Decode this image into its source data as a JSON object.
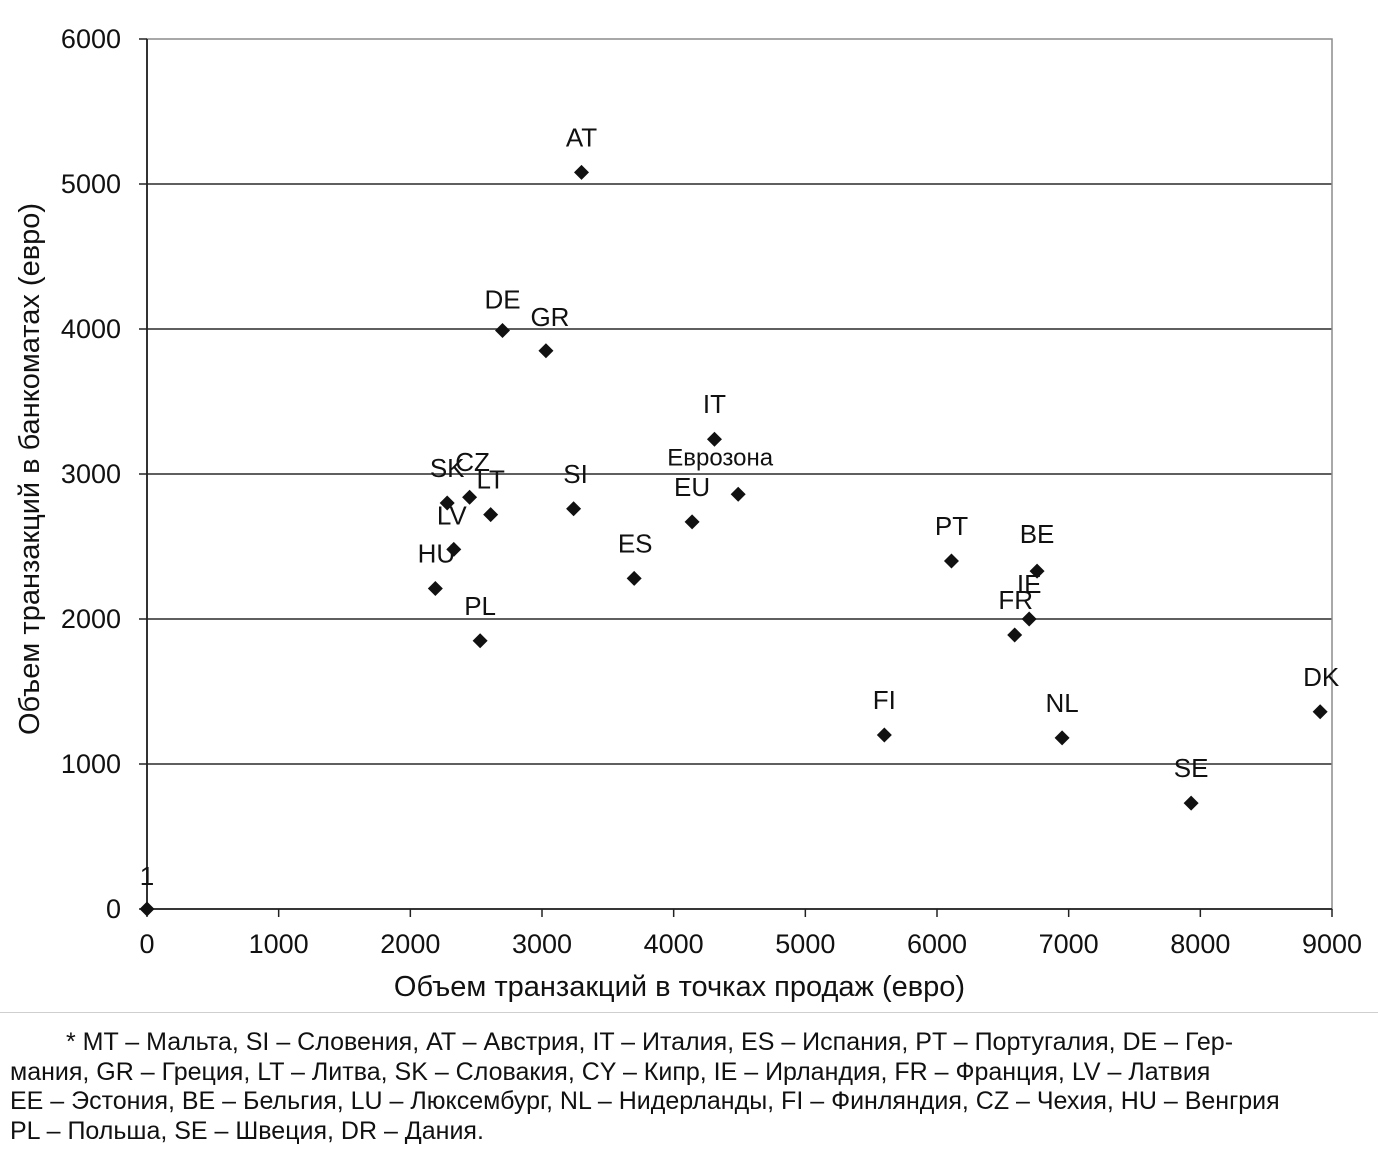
{
  "chart_data": {
    "type": "scatter",
    "title": "",
    "xlabel": "Объем транзакций в точках продаж (евро)",
    "ylabel": "Объем транзакций в банкоматах (евро)",
    "xlim": [
      0,
      9000
    ],
    "ylim": [
      0,
      6000
    ],
    "x_ticks": [
      "0",
      "1000",
      "2000",
      "3000",
      "4000",
      "5000",
      "6000",
      "7000",
      "8000",
      "9000"
    ],
    "y_ticks": [
      "0",
      "1000",
      "2000",
      "3000",
      "4000",
      "5000",
      "6000"
    ],
    "grid": "horizontal",
    "marker": "diamond",
    "points": [
      {
        "label": "1",
        "x": 0,
        "y": 0
      },
      {
        "label": "AT",
        "x": 3300,
        "y": 5080
      },
      {
        "label": "DE",
        "x": 2700,
        "y": 3990
      },
      {
        "label": "GR",
        "x": 3030,
        "y": 3850
      },
      {
        "label": "IT",
        "x": 4310,
        "y": 3240
      },
      {
        "label": "Еврозона",
        "x": 4490,
        "y": 2860
      },
      {
        "label": "SK",
        "x": 2280,
        "y": 2800
      },
      {
        "label": "CZ",
        "x": 2450,
        "y": 2840
      },
      {
        "label": "LT",
        "x": 2610,
        "y": 2720
      },
      {
        "label": "SI",
        "x": 3240,
        "y": 2760
      },
      {
        "label": "EU",
        "x": 4140,
        "y": 2670
      },
      {
        "label": "LV",
        "x": 2330,
        "y": 2480
      },
      {
        "label": "HU",
        "x": 2190,
        "y": 2210
      },
      {
        "label": "PL",
        "x": 2530,
        "y": 1850
      },
      {
        "label": "ES",
        "x": 3700,
        "y": 2280
      },
      {
        "label": "PT",
        "x": 6110,
        "y": 2400
      },
      {
        "label": "BE",
        "x": 6760,
        "y": 2330
      },
      {
        "label": "IE",
        "x": 6700,
        "y": 2000
      },
      {
        "label": "FR",
        "x": 6590,
        "y": 1890
      },
      {
        "label": "FI",
        "x": 5600,
        "y": 1200
      },
      {
        "label": "NL",
        "x": 6950,
        "y": 1180
      },
      {
        "label": "DK",
        "x": 8910,
        "y": 1360
      },
      {
        "label": "SE",
        "x": 7930,
        "y": 730
      }
    ]
  },
  "footnote": {
    "lines": [
      "* MT – Мальта, SI – Словения, AT – Австрия, IT – Италия, ES – Испания, PT – Португалия, DE – Гер-",
      "мания, GR – Греция, LT – Литва, SK – Словакия, CY – Кипр, IE – Ирландия, FR – Франция, LV – Латвия",
      "EE – Эстония, BE – Бельгия, LU – Люксембург, NL – Нидерланды, FI – Финляндия, CZ – Чехия, HU – Венгрия",
      "PL – Польша, SE – Швеция, DR – Дания."
    ]
  }
}
